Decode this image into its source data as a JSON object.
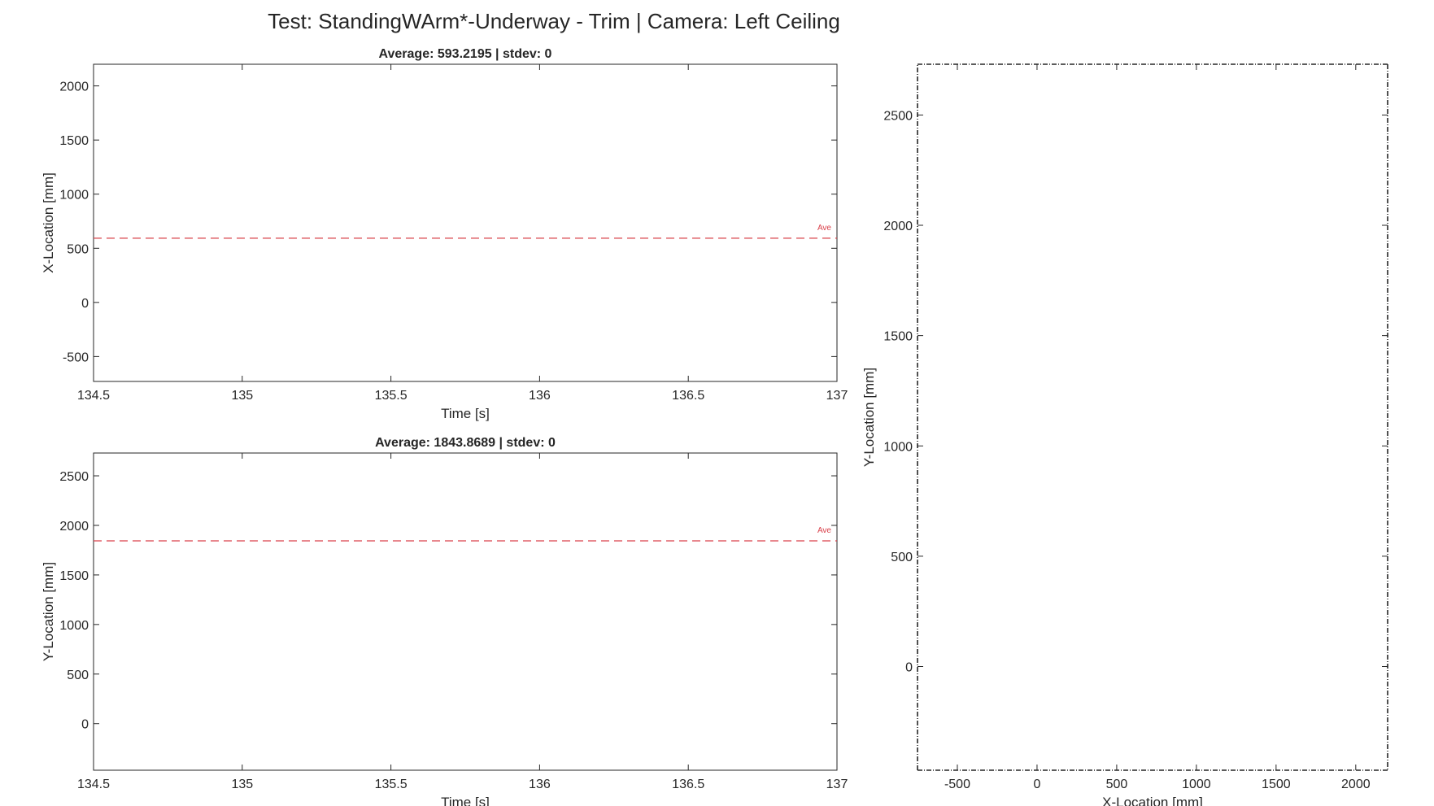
{
  "figure": {
    "title": "Test: StandingWArm*-Underway - Trim  |  Camera: Left Ceiling"
  },
  "chart_data": [
    {
      "type": "line",
      "title": "Average: 593.2195  |  stdev: 0",
      "xlabel": "Time [s]",
      "ylabel": "X-Location [mm]",
      "xlim": [
        134.5,
        137
      ],
      "ylim": [
        -730,
        2200
      ],
      "xticks": [
        134.5,
        135,
        135.5,
        136,
        136.5,
        137
      ],
      "yticks": [
        -500,
        0,
        500,
        1000,
        1500,
        2000
      ],
      "grid": false,
      "reference_line": {
        "value": 593.2195,
        "label": "Ave",
        "color": "#d9404a",
        "style": "dashed"
      },
      "series": []
    },
    {
      "type": "line",
      "title": "Average: 1843.8689  |  stdev: 0",
      "xlabel": "Time [s]",
      "ylabel": "Y-Location [mm]",
      "xlim": [
        134.5,
        137
      ],
      "ylim": [
        -470,
        2730
      ],
      "xticks": [
        134.5,
        135,
        135.5,
        136,
        136.5,
        137
      ],
      "yticks": [
        0,
        500,
        1000,
        1500,
        2000,
        2500
      ],
      "grid": false,
      "reference_line": {
        "value": 1843.8689,
        "label": "Ave",
        "color": "#d9404a",
        "style": "dashed"
      },
      "series": []
    },
    {
      "type": "scatter",
      "title": "",
      "xlabel": "X-Location [mm]",
      "ylabel": "Y-Location [mm]",
      "xlim": [
        -750,
        2200
      ],
      "ylim": [
        -470,
        2730
      ],
      "xticks": [
        -500,
        0,
        500,
        1000,
        1500,
        2000
      ],
      "yticks": [
        0,
        500,
        1000,
        1500,
        2000,
        2500
      ],
      "grid": false,
      "boundary_style": "dash-dot",
      "series": []
    }
  ]
}
